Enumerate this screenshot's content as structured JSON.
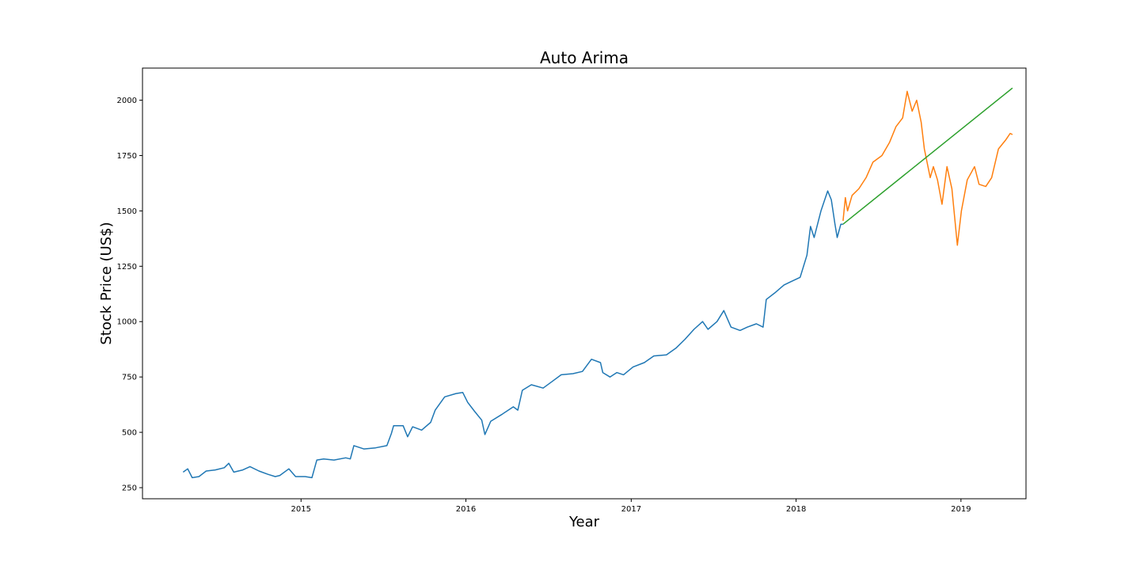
{
  "chart_data": {
    "type": "line",
    "title": "Auto Arima",
    "xlabel": "Year",
    "ylabel": "Stock Price (US$)",
    "xlim": [
      "2014-01-15",
      "2019-05-25"
    ],
    "ylim": [
      200,
      2145
    ],
    "xticks": [
      "2015",
      "2016",
      "2017",
      "2018",
      "2019"
    ],
    "yticks": [
      250,
      500,
      750,
      1000,
      1250,
      1500,
      1750,
      2000
    ],
    "grid": false,
    "legend": "none",
    "series": [
      {
        "color": "#1f77b4",
        "points": [
          [
            "2014-04-15",
            320
          ],
          [
            "2014-04-25",
            335
          ],
          [
            "2014-05-05",
            295
          ],
          [
            "2014-05-20",
            300
          ],
          [
            "2014-06-05",
            325
          ],
          [
            "2014-06-25",
            330
          ],
          [
            "2014-07-15",
            340
          ],
          [
            "2014-07-25",
            360
          ],
          [
            "2014-08-05",
            320
          ],
          [
            "2014-08-25",
            330
          ],
          [
            "2014-09-10",
            345
          ],
          [
            "2014-09-30",
            325
          ],
          [
            "2014-10-20",
            310
          ],
          [
            "2014-11-05",
            300
          ],
          [
            "2014-11-15",
            305
          ],
          [
            "2014-12-05",
            335
          ],
          [
            "2014-12-20",
            300
          ],
          [
            "2015-01-10",
            300
          ],
          [
            "2015-01-25",
            295
          ],
          [
            "2015-02-05",
            375
          ],
          [
            "2015-02-20",
            380
          ],
          [
            "2015-03-15",
            375
          ],
          [
            "2015-04-10",
            385
          ],
          [
            "2015-04-20",
            380
          ],
          [
            "2015-04-28",
            440
          ],
          [
            "2015-05-20",
            425
          ],
          [
            "2015-06-15",
            430
          ],
          [
            "2015-07-10",
            440
          ],
          [
            "2015-07-20",
            495
          ],
          [
            "2015-07-25",
            530
          ],
          [
            "2015-08-15",
            530
          ],
          [
            "2015-08-25",
            480
          ],
          [
            "2015-09-05",
            525
          ],
          [
            "2015-09-25",
            510
          ],
          [
            "2015-10-15",
            545
          ],
          [
            "2015-10-25",
            600
          ],
          [
            "2015-11-15",
            660
          ],
          [
            "2015-12-10",
            675
          ],
          [
            "2015-12-25",
            680
          ],
          [
            "2016-01-05",
            635
          ],
          [
            "2016-01-20",
            595
          ],
          [
            "2016-02-05",
            555
          ],
          [
            "2016-02-12",
            490
          ],
          [
            "2016-02-25",
            550
          ],
          [
            "2016-03-20",
            580
          ],
          [
            "2016-04-15",
            615
          ],
          [
            "2016-04-25",
            600
          ],
          [
            "2016-05-05",
            690
          ],
          [
            "2016-05-25",
            715
          ],
          [
            "2016-06-20",
            700
          ],
          [
            "2016-07-10",
            730
          ],
          [
            "2016-07-30",
            760
          ],
          [
            "2016-08-25",
            765
          ],
          [
            "2016-09-15",
            775
          ],
          [
            "2016-10-05",
            830
          ],
          [
            "2016-10-25",
            815
          ],
          [
            "2016-10-30",
            770
          ],
          [
            "2016-11-15",
            750
          ],
          [
            "2016-11-30",
            770
          ],
          [
            "2016-12-15",
            760
          ],
          [
            "2017-01-05",
            795
          ],
          [
            "2017-01-30",
            815
          ],
          [
            "2017-02-20",
            845
          ],
          [
            "2017-03-20",
            850
          ],
          [
            "2017-04-10",
            880
          ],
          [
            "2017-04-30",
            920
          ],
          [
            "2017-05-20",
            965
          ],
          [
            "2017-06-08",
            1000
          ],
          [
            "2017-06-20",
            965
          ],
          [
            "2017-07-10",
            1000
          ],
          [
            "2017-07-25",
            1050
          ],
          [
            "2017-08-10",
            975
          ],
          [
            "2017-08-30",
            960
          ],
          [
            "2017-09-15",
            975
          ],
          [
            "2017-10-05",
            990
          ],
          [
            "2017-10-20",
            975
          ],
          [
            "2017-10-27",
            1100
          ],
          [
            "2017-11-15",
            1130
          ],
          [
            "2017-12-05",
            1165
          ],
          [
            "2017-12-20",
            1180
          ],
          [
            "2018-01-10",
            1200
          ],
          [
            "2018-01-25",
            1300
          ],
          [
            "2018-02-02",
            1430
          ],
          [
            "2018-02-10",
            1380
          ],
          [
            "2018-02-25",
            1500
          ],
          [
            "2018-03-12",
            1590
          ],
          [
            "2018-03-20",
            1550
          ],
          [
            "2018-03-28",
            1440
          ],
          [
            "2018-04-02",
            1380
          ],
          [
            "2018-04-10",
            1440
          ],
          [
            "2018-04-15",
            1440
          ]
        ]
      },
      {
        "color": "#ff7f0e",
        "points": [
          [
            "2018-04-15",
            1455
          ],
          [
            "2018-04-20",
            1560
          ],
          [
            "2018-04-25",
            1500
          ],
          [
            "2018-05-05",
            1570
          ],
          [
            "2018-05-20",
            1600
          ],
          [
            "2018-06-05",
            1650
          ],
          [
            "2018-06-20",
            1720
          ],
          [
            "2018-07-10",
            1750
          ],
          [
            "2018-07-27",
            1810
          ],
          [
            "2018-08-10",
            1880
          ],
          [
            "2018-08-25",
            1920
          ],
          [
            "2018-09-04",
            2040
          ],
          [
            "2018-09-15",
            1950
          ],
          [
            "2018-09-25",
            2000
          ],
          [
            "2018-10-05",
            1900
          ],
          [
            "2018-10-12",
            1780
          ],
          [
            "2018-10-25",
            1650
          ],
          [
            "2018-11-01",
            1700
          ],
          [
            "2018-11-10",
            1640
          ],
          [
            "2018-11-20",
            1530
          ],
          [
            "2018-12-01",
            1700
          ],
          [
            "2018-12-12",
            1600
          ],
          [
            "2018-12-24",
            1345
          ],
          [
            "2019-01-02",
            1500
          ],
          [
            "2019-01-15",
            1640
          ],
          [
            "2019-01-31",
            1700
          ],
          [
            "2019-02-10",
            1620
          ],
          [
            "2019-02-25",
            1610
          ],
          [
            "2019-03-10",
            1650
          ],
          [
            "2019-03-25",
            1780
          ],
          [
            "2019-04-10",
            1820
          ],
          [
            "2019-04-20",
            1850
          ],
          [
            "2019-04-25",
            1845
          ]
        ]
      },
      {
        "color": "#2ca02c",
        "points": [
          [
            "2018-04-15",
            1440
          ],
          [
            "2019-04-25",
            2055
          ]
        ]
      }
    ]
  }
}
